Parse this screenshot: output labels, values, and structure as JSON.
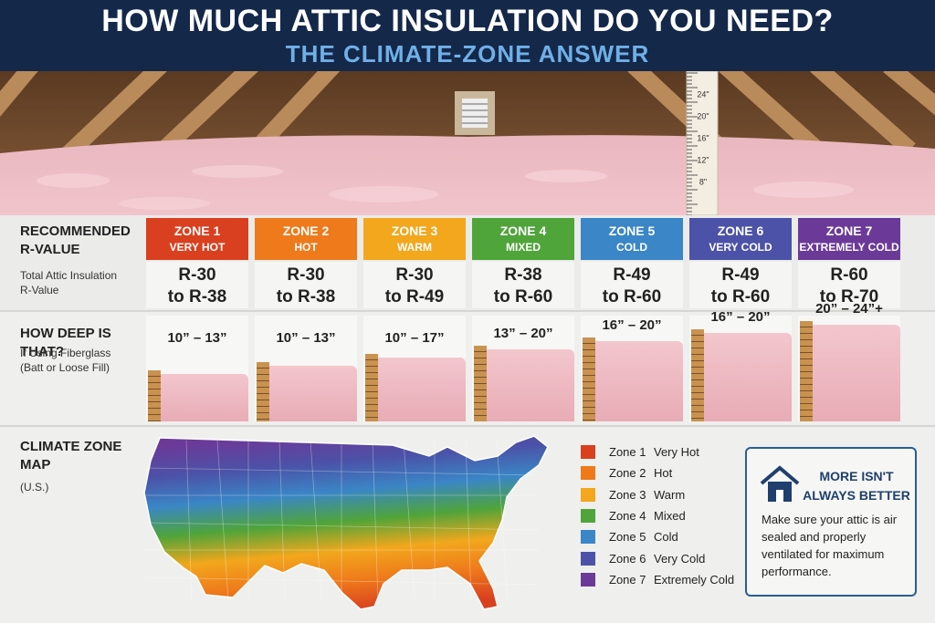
{
  "header": {
    "title": "HOW MUCH ATTIC INSULATION DO YOU NEED?",
    "subtitle": "THE CLIMATE-ZONE ANSWER"
  },
  "ruler_marks": [
    "24\"",
    "20\"",
    "16\"",
    "12\"",
    "8\""
  ],
  "r_value_section": {
    "title": "RECOMMENDED R-VALUE",
    "subtitle": "Total Attic Insulation R-Value"
  },
  "depth_section": {
    "title": "HOW DEEP IS THAT?",
    "subtitle": "If Using Fiberglass (Batt or Loose Fill)"
  },
  "zones": [
    {
      "zone": "ZONE 1",
      "climate": "VERY HOT",
      "color": "#d9401f",
      "r_from": "R-30",
      "r_to": "to R-38",
      "depth": "10” – 13”"
    },
    {
      "zone": "ZONE 2",
      "climate": "HOT",
      "color": "#ee7a1b",
      "r_from": "R-30",
      "r_to": "to R-38",
      "depth": "10” – 13”"
    },
    {
      "zone": "ZONE 3",
      "climate": "WARM",
      "color": "#f2a71c",
      "r_from": "R-30",
      "r_to": "to R-49",
      "depth": "10” – 17”"
    },
    {
      "zone": "ZONE 4",
      "climate": "MIXED",
      "color": "#4fa43a",
      "r_from": "R-38",
      "r_to": "to R-60",
      "depth": "13” – 20”"
    },
    {
      "zone": "ZONE 5",
      "climate": "COLD",
      "color": "#3a86c6",
      "r_from": "R-49",
      "r_to": "to R-60",
      "depth": "16” – 20”"
    },
    {
      "zone": "ZONE 6",
      "climate": "VERY COLD",
      "color": "#4b52a7",
      "r_from": "R-49",
      "r_to": "to R-60",
      "depth": "16” – 20”"
    },
    {
      "zone": "ZONE 7",
      "climate": "EXTREMELY COLD",
      "color": "#6b3a99",
      "r_from": "R-60",
      "r_to": "to R-70",
      "depth": "20” – 24”+"
    }
  ],
  "map_section": {
    "title": "CLIMATE ZONE MAP",
    "subtitle": "(U.S.)"
  },
  "legend": [
    {
      "zone": "Zone 1",
      "label": "Very Hot"
    },
    {
      "zone": "Zone 2",
      "label": "Hot"
    },
    {
      "zone": "Zone 3",
      "label": "Warm"
    },
    {
      "zone": "Zone 4",
      "label": "Mixed"
    },
    {
      "zone": "Zone 5",
      "label": "Cold"
    },
    {
      "zone": "Zone 6",
      "label": "Very Cold"
    },
    {
      "zone": "Zone 7",
      "label": "Extremely Cold"
    }
  ],
  "callout": {
    "title": "MORE ISN'T ALWAYS BETTER",
    "text": "Make sure your attic is air sealed and properly ventilated for maximum performance."
  }
}
